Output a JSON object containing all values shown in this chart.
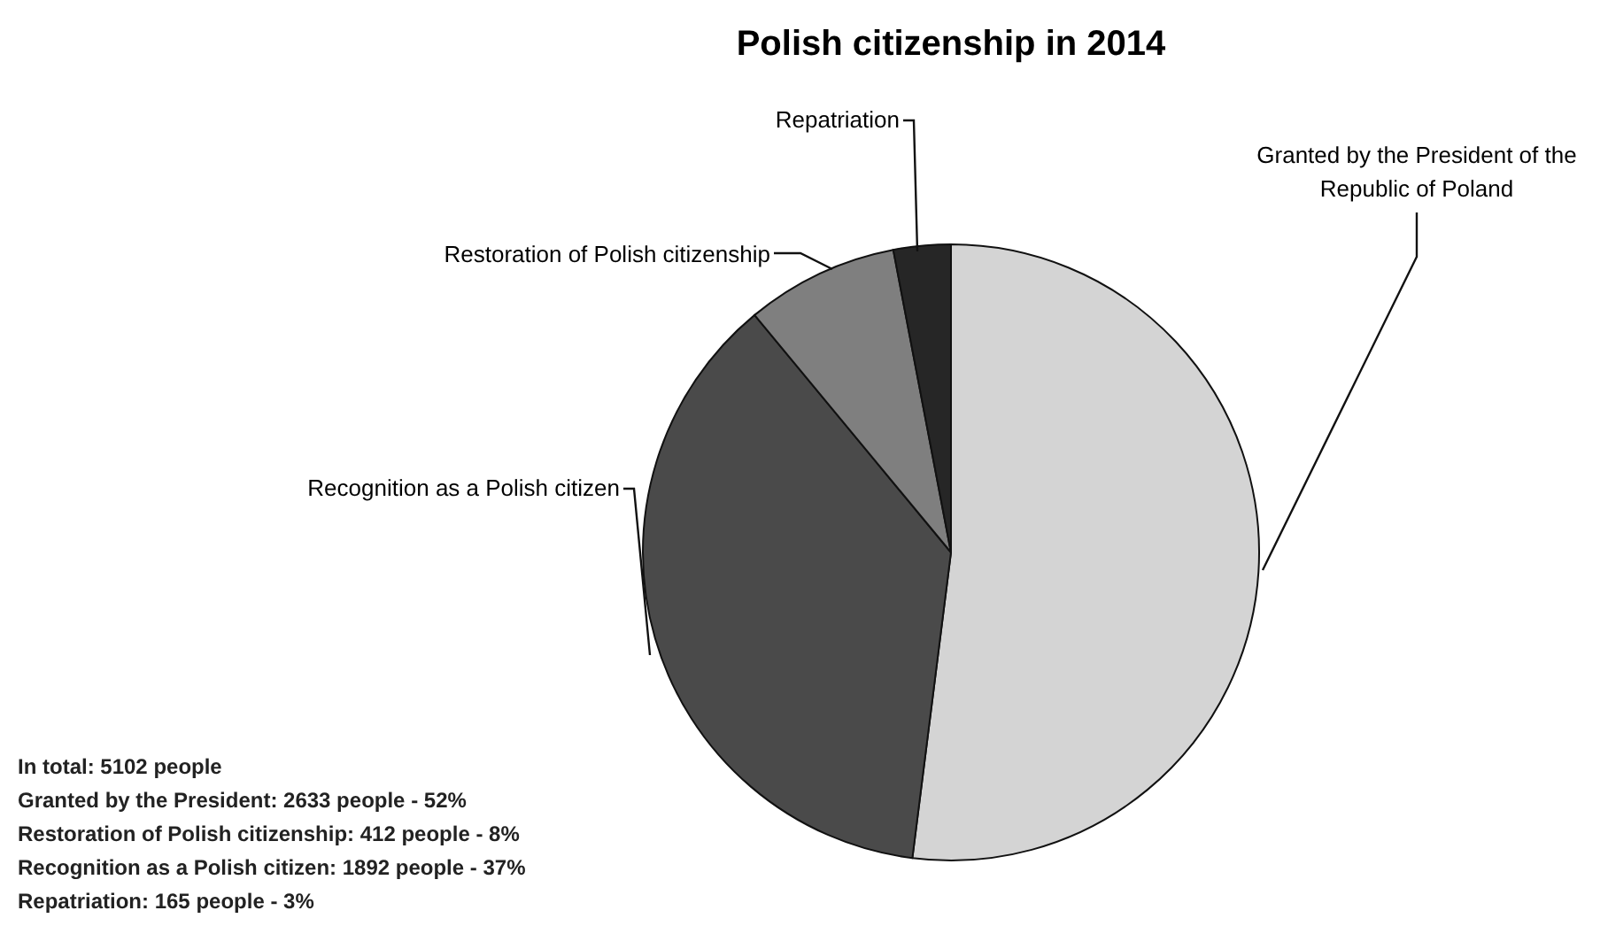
{
  "chart_data": {
    "type": "pie",
    "title": "Polish citizenship in 2014",
    "categories": [
      "Granted by the President of the Republic of Poland",
      "Recognition as a Polish citizen",
      "Restoration of Polish citizenship",
      "Repatriation"
    ],
    "values": [
      52,
      37,
      8,
      3
    ],
    "colors": [
      "#d4d4d4",
      "#4a4a4a",
      "#7f7f7f",
      "#262626"
    ],
    "annotations": [
      "In total: 5102 people",
      "Granted by the President: 2633 people - 52%",
      "Restoration of Polish citizenship: 412 people - 8%",
      "Recognition as a Polish citizen: 1892 people - 37%",
      "Repatriation: 165 people - 3%"
    ]
  }
}
